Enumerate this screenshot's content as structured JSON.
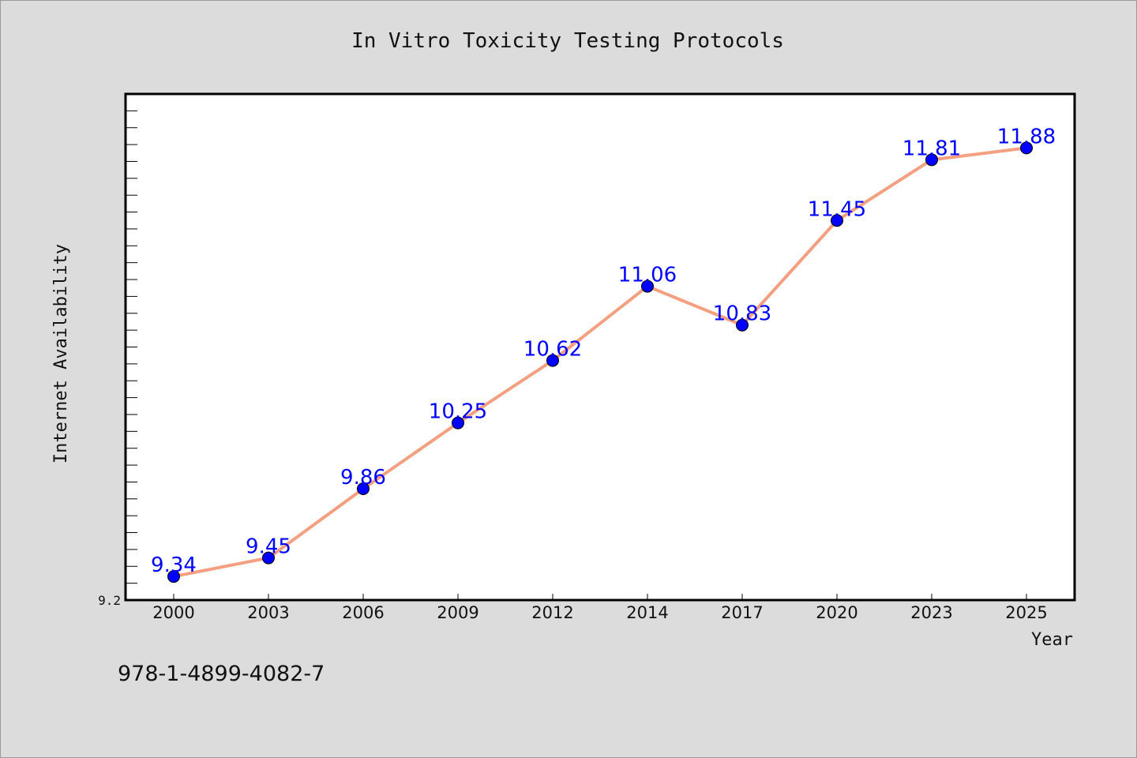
{
  "chart_data": {
    "type": "line",
    "title": "In Vitro Toxicity Testing Protocols",
    "xlabel": "Year",
    "ylabel": "Internet Availability",
    "categories": [
      "2000",
      "2003",
      "2006",
      "2009",
      "2012",
      "2014",
      "2017",
      "2020",
      "2023",
      "2025"
    ],
    "values": [
      9.34,
      9.45,
      9.86,
      10.25,
      10.62,
      11.06,
      10.83,
      11.45,
      11.81,
      11.88
    ],
    "value_labels": [
      "9.34",
      "9.45",
      "9.86",
      "10.25",
      "10.62",
      "11.06",
      "10.83",
      "11.45",
      "11.81",
      "11.88"
    ],
    "ylim": [
      9.2,
      12.2
    ],
    "ymin_label": "9.2",
    "grid": false,
    "line_color": "#f4a080",
    "marker_color": "#0000ff",
    "label_color": "#0000ff"
  },
  "footer": {
    "isbn": "978-1-4899-4082-7"
  }
}
